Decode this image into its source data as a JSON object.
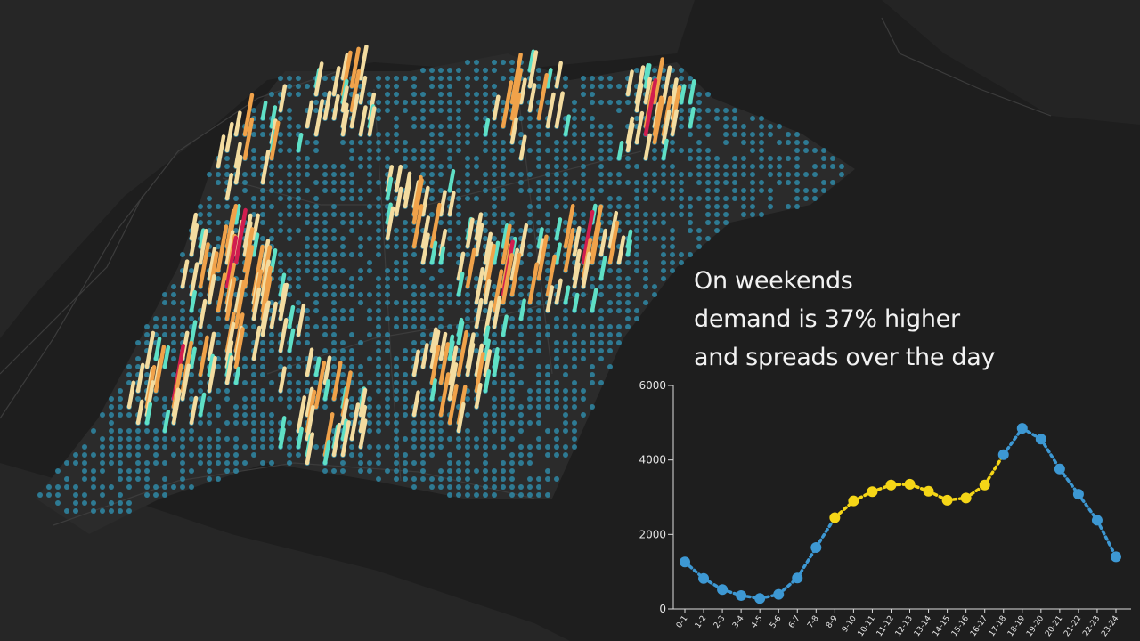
{
  "caption": {
    "line1": "On weekends",
    "line2": "demand is 37% higher",
    "line3": "and spreads over the day"
  },
  "colors": {
    "background": "#1e1e1e",
    "land": "#2a2a2a",
    "road": "#3a3a3a",
    "hex_low": "#2f8fae",
    "bar_teal": "#5fe0c6",
    "bar_cream": "#f3dca0",
    "bar_orange": "#f0a24a",
    "bar_red": "#d11d4f",
    "point_blue": "#3d98d3",
    "point_yellow": "#f5d617"
  },
  "chart_data": {
    "type": "line",
    "categories": [
      "0-1",
      "1-2",
      "2-3",
      "3-4",
      "4-5",
      "5-6",
      "6-7",
      "7-8",
      "8-9",
      "9-10",
      "10-11",
      "11-12",
      "12-13",
      "13-14",
      "14-15",
      "15-16",
      "16-17",
      "17-18",
      "18-19",
      "19-20",
      "20-21",
      "21-22",
      "22-23",
      "23-24"
    ],
    "values": [
      1260,
      820,
      520,
      360,
      280,
      390,
      830,
      1650,
      2450,
      2900,
      3150,
      3330,
      3350,
      3160,
      2920,
      2980,
      3330,
      4140,
      4850,
      4560,
      3760,
      3080,
      2380,
      1400
    ],
    "highlight": [
      "blue",
      "blue",
      "blue",
      "blue",
      "blue",
      "blue",
      "blue",
      "blue",
      "yellow",
      "yellow",
      "yellow",
      "yellow",
      "yellow",
      "yellow",
      "yellow",
      "yellow",
      "yellow",
      "blue",
      "blue",
      "blue",
      "blue",
      "blue",
      "blue",
      "blue"
    ],
    "yticks": [
      0,
      2000,
      4000,
      6000
    ],
    "ylim": [
      0,
      6000
    ],
    "grid": false,
    "xlabel": "",
    "ylabel": ""
  }
}
